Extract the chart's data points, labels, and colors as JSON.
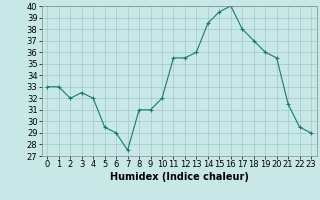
{
  "x": [
    0,
    1,
    2,
    3,
    4,
    5,
    6,
    7,
    8,
    9,
    10,
    11,
    12,
    13,
    14,
    15,
    16,
    17,
    18,
    19,
    20,
    21,
    22,
    23
  ],
  "y": [
    33,
    33,
    32,
    32.5,
    32,
    29.5,
    29,
    27.5,
    31,
    31,
    32,
    35.5,
    35.5,
    36,
    38.5,
    39.5,
    40,
    38,
    37,
    36,
    35.5,
    31.5,
    29.5,
    29
  ],
  "line_color": "#1a7a6e",
  "marker": "+",
  "bg_color": "#c8e8e8",
  "grid_color": "#a0c8c8",
  "xlabel": "Humidex (Indice chaleur)",
  "ylim": [
    27,
    40
  ],
  "xlim": [
    -0.5,
    23.5
  ],
  "yticks": [
    27,
    28,
    29,
    30,
    31,
    32,
    33,
    34,
    35,
    36,
    37,
    38,
    39,
    40
  ],
  "xticks": [
    0,
    1,
    2,
    3,
    4,
    5,
    6,
    7,
    8,
    9,
    10,
    11,
    12,
    13,
    14,
    15,
    16,
    17,
    18,
    19,
    20,
    21,
    22,
    23
  ],
  "label_fontsize": 7,
  "tick_fontsize": 6
}
